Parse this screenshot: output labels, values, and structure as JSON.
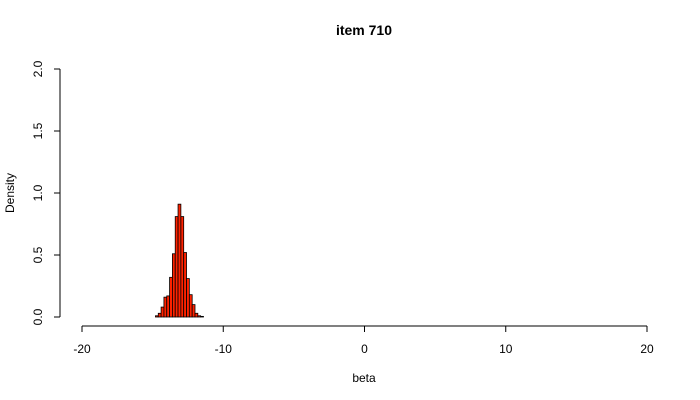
{
  "chart_data": {
    "type": "bar",
    "title": "item 710",
    "xlabel": "beta",
    "ylabel": "Density",
    "xlim": [
      -20,
      20
    ],
    "ylim": [
      0,
      2.0
    ],
    "x_ticks": [
      "-20",
      "-10",
      "0",
      "10",
      "20"
    ],
    "y_ticks": [
      "0.0",
      "0.5",
      "1.0",
      "1.5",
      "2.0"
    ],
    "bin_width": 0.2,
    "bin_left_edges": [
      -14.8,
      -14.6,
      -14.4,
      -14.2,
      -14.0,
      -13.8,
      -13.6,
      -13.4,
      -13.2,
      -13.0,
      -12.8,
      -12.6,
      -12.4,
      -12.2,
      -12.0,
      -11.8,
      -11.6
    ],
    "values": [
      0.01,
      0.03,
      0.08,
      0.16,
      0.17,
      0.32,
      0.51,
      0.81,
      0.91,
      0.81,
      0.52,
      0.31,
      0.18,
      0.1,
      0.03,
      0.01,
      0.005
    ],
    "bar_color": "#ff2200",
    "grid": false
  }
}
